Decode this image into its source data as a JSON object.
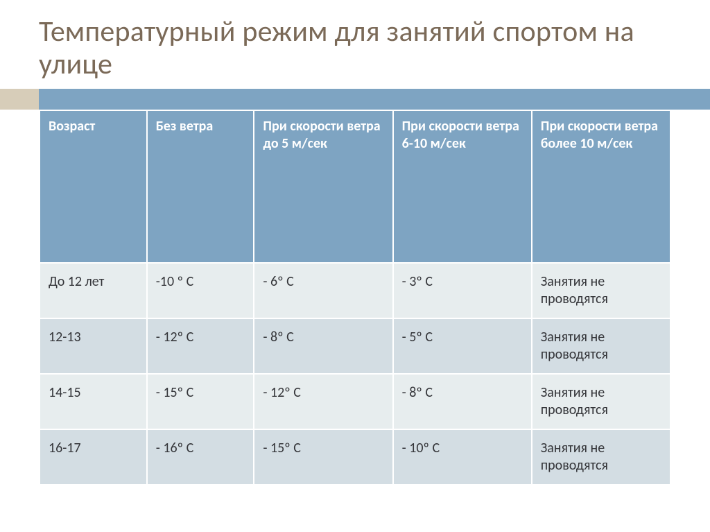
{
  "title": "Температурный режим для занятий спортом на улице",
  "title_color": "#7b6a58",
  "title_fontsize": 42,
  "accent_left_color": "#d7cdb9",
  "accent_right_color": "#7ea4c2",
  "table": {
    "type": "table",
    "header_bg": "#7ea4c2",
    "header_text_color": "#ffffff",
    "header_fontsize": 20,
    "header_fontweight": 700,
    "body_fontsize": 20,
    "body_text_color": "#343539",
    "row_band_a_bg": "#e7edee",
    "row_band_b_bg": "#d3dde3",
    "border_color": "#ffffff",
    "col_widths_pct": [
      17,
      17,
      22,
      22,
      22
    ],
    "columns": [
      "Возраст",
      "Без ветра",
      "При скорости ветра до 5 м/сек",
      "При скорости ветра 6-10 м/сек",
      "При скорости ветра более 10 м/сек"
    ],
    "rows": [
      [
        "До 12 лет",
        "-10 º С",
        "- 6º С",
        "- 3º С",
        "Занятия не проводятся"
      ],
      [
        "12-13",
        "- 12º С",
        "- 8º С",
        "- 5º С",
        "Занятия не проводятся"
      ],
      [
        "14-15",
        "- 15º С",
        "- 12º С",
        "- 8º С",
        "Занятия не проводятся"
      ],
      [
        "16-17",
        "- 16º С",
        "- 15º С",
        "- 10º С",
        "Занятия не проводятся"
      ]
    ]
  }
}
